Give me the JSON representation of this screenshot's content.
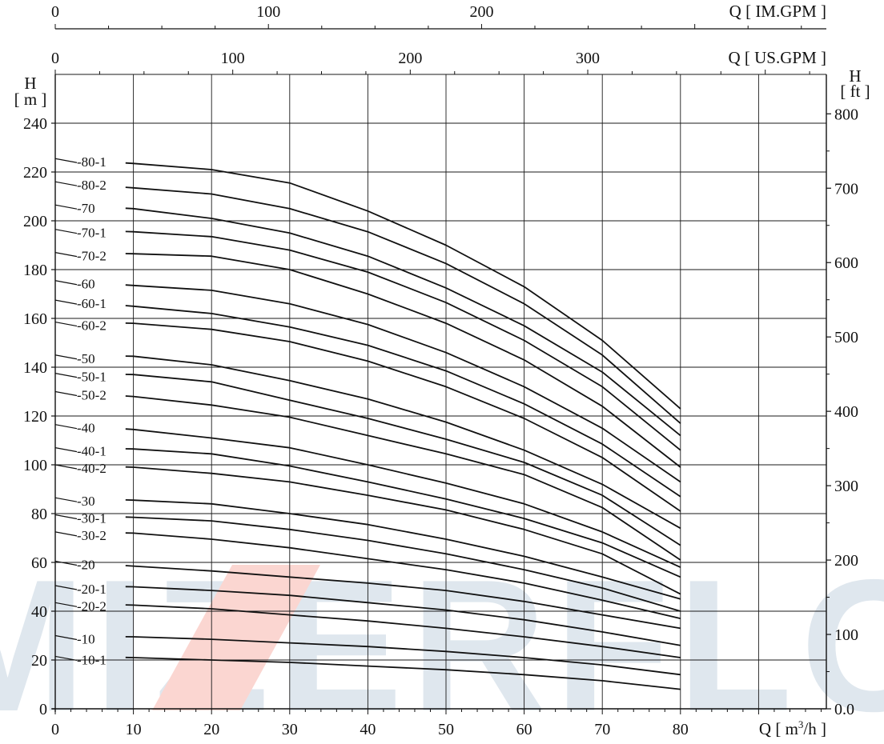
{
  "watermark": {
    "text": "MIZERFLO",
    "colors": {
      "main": "#dfe7ee",
      "accent": "#fbd6d1"
    }
  },
  "chart_data": {
    "type": "line",
    "title": "",
    "xlabel": "Q [ m³/h ]",
    "xlabel_base": "Q  [ m",
    "xlabel_sup": "3",
    "xlabel_tail": "/h ]",
    "xlim": [
      0,
      100
    ],
    "xticks": [
      0,
      10,
      20,
      30,
      40,
      50,
      60,
      70,
      80
    ],
    "ylabel_left": {
      "line1": "H",
      "line2": "[ m ]"
    },
    "ylim": [
      0,
      260
    ],
    "yticks": [
      0,
      20,
      40,
      60,
      80,
      100,
      120,
      140,
      160,
      180,
      200,
      220,
      240
    ],
    "ylabel_right": {
      "line1": "H",
      "line2": "[ ft ]"
    },
    "right_ticks": [
      {
        "value": 0,
        "label": "0.0"
      },
      {
        "value": 100,
        "label": "100"
      },
      {
        "value": 200,
        "label": "200"
      },
      {
        "value": 300,
        "label": "300"
      },
      {
        "value": 400,
        "label": "400"
      },
      {
        "value": 500,
        "label": "500"
      },
      {
        "value": 600,
        "label": "600"
      },
      {
        "value": 700,
        "label": "700"
      },
      {
        "value": 800,
        "label": "800"
      }
    ],
    "top_axis_us": {
      "label": "Q  [ US.GPM ]",
      "ticks": [
        {
          "value": 0,
          "label": "0"
        },
        {
          "value": 100,
          "label": "100"
        },
        {
          "value": 200,
          "label": "200"
        },
        {
          "value": 300,
          "label": "300"
        }
      ]
    },
    "top_axis_im": {
      "label": "Q  [ IM.GPM ]",
      "ticks": [
        {
          "value": 0,
          "label": "0"
        },
        {
          "value": 100,
          "label": "100"
        },
        {
          "value": 200,
          "label": "200"
        }
      ]
    },
    "grid": true,
    "x": [
      0,
      10,
      20,
      30,
      40,
      50,
      60,
      70,
      80
    ],
    "series": [
      {
        "name": "-80-1",
        "values": [
          225.5,
          223.5,
          221,
          215.5,
          204,
          190,
          173,
          151,
          123
        ],
        "label_start": 9
      },
      {
        "name": "-80-2",
        "values": [
          216,
          213.5,
          211,
          205,
          195.5,
          182.5,
          166,
          145,
          117
        ],
        "label_start": 9
      },
      {
        "name": "-70",
        "values": [
          206.5,
          205,
          201,
          195,
          185.5,
          172.5,
          157,
          138,
          112
        ],
        "label_start": 9
      },
      {
        "name": "-70-1",
        "values": [
          196.5,
          195.5,
          193.5,
          188,
          179,
          166.5,
          151,
          132,
          106
        ],
        "label_start": 9
      },
      {
        "name": "-70-2",
        "values": [
          187,
          186.5,
          185.5,
          180,
          170,
          158,
          143,
          124,
          99
        ],
        "label_start": 9
      },
      {
        "name": "-60",
        "values": [
          175.5,
          173.5,
          171.5,
          166,
          157.5,
          146,
          132,
          115,
          93
        ],
        "label_start": 9
      },
      {
        "name": "-60-1",
        "values": [
          167.5,
          165,
          162,
          156.5,
          149,
          138.5,
          125,
          108.5,
          87
        ],
        "label_start": 9
      },
      {
        "name": "-60-2",
        "values": [
          158.5,
          158,
          155.5,
          150.5,
          142.5,
          132,
          119,
          103,
          81
        ],
        "label_start": 9
      },
      {
        "name": "-50",
        "values": [
          145,
          144.5,
          141,
          134.5,
          127,
          117.5,
          106,
          92,
          74
        ],
        "label_start": 9
      },
      {
        "name": "-50-1",
        "values": [
          137.5,
          137,
          134,
          126.5,
          119,
          110.5,
          101,
          87.5,
          67
        ],
        "label_start": 9
      },
      {
        "name": "-50-2",
        "values": [
          130,
          128,
          124.5,
          119.5,
          112,
          104.5,
          96,
          82.5,
          61
        ],
        "label_start": 9
      },
      {
        "name": "-40",
        "values": [
          116.5,
          114.5,
          111,
          107,
          100,
          92.5,
          84,
          72.5,
          58
        ],
        "label_start": 9
      },
      {
        "name": "-40-1",
        "values": [
          107,
          106.5,
          104.5,
          99.5,
          93,
          86,
          78,
          68,
          54
        ],
        "label_start": 9
      },
      {
        "name": "-40-2",
        "values": [
          100,
          99,
          96.5,
          93,
          87.5,
          81.5,
          73.5,
          63.5,
          47
        ],
        "label_start": 9
      },
      {
        "name": "-30",
        "values": [
          86.5,
          85.5,
          84,
          80,
          75.5,
          69.5,
          62.5,
          54,
          45
        ],
        "label_start": 9
      },
      {
        "name": "-30-1",
        "values": [
          79.5,
          78.5,
          77,
          73.5,
          69,
          63.5,
          57,
          49.5,
          40
        ],
        "label_start": 9
      },
      {
        "name": "-30-2",
        "values": [
          72.5,
          72,
          69.5,
          66,
          61.5,
          57,
          51.5,
          44.5,
          37
        ],
        "label_start": 9
      },
      {
        "name": "-20",
        "values": [
          60.5,
          58.5,
          56.5,
          54,
          51.5,
          48.5,
          44,
          38.5,
          33
        ],
        "label_start": 9
      },
      {
        "name": "-20-1",
        "values": [
          50.5,
          50,
          48.5,
          46.5,
          43.5,
          40.5,
          36.5,
          31.5,
          26
        ],
        "label_start": 9
      },
      {
        "name": "-20-2",
        "values": [
          43.5,
          42.5,
          41,
          38.5,
          36,
          33,
          29.5,
          25.5,
          21
        ],
        "label_start": 9
      },
      {
        "name": "-10",
        "values": [
          30,
          29.5,
          28.5,
          27,
          25.5,
          23.5,
          21,
          18,
          14
        ],
        "label_start": 9
      },
      {
        "name": "-10-1",
        "values": [
          21.5,
          21,
          20,
          19,
          17.5,
          16,
          14,
          11.5,
          8
        ],
        "label_start": 9
      }
    ]
  }
}
